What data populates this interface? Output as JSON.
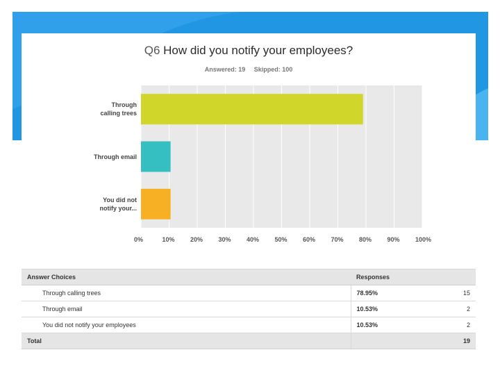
{
  "question": {
    "number": "Q6",
    "text": "How did you notify your employees?"
  },
  "stats": {
    "answered_label": "Answered: 19",
    "skipped_label": "Skipped: 100"
  },
  "chart_data": {
    "type": "bar",
    "orientation": "horizontal",
    "title": "Q6 How did you notify your employees?",
    "categories": [
      "Through calling trees",
      "Through email",
      "You did not notify your..."
    ],
    "category_lines": [
      [
        "Through",
        "calling trees"
      ],
      [
        "Through email"
      ],
      [
        "You did not",
        "notify your..."
      ]
    ],
    "values": [
      78.95,
      10.53,
      10.53
    ],
    "value_unit": "%",
    "colors": [
      "#d1d62a",
      "#36bfc1",
      "#f7b023"
    ],
    "xlim": [
      0,
      100
    ],
    "ticks": [
      "0%",
      "10%",
      "20%",
      "30%",
      "40%",
      "50%",
      "60%",
      "70%",
      "80%",
      "90%",
      "100%"
    ],
    "grid": true,
    "legend": "none"
  },
  "table": {
    "headers": {
      "choices": "Answer Choices",
      "responses": "Responses"
    },
    "rows": [
      {
        "choice": "Through calling trees",
        "percent": "78.95%",
        "count": "15"
      },
      {
        "choice": "Through email",
        "percent": "10.53%",
        "count": "2"
      },
      {
        "choice": "You did not notify your employees",
        "percent": "10.53%",
        "count": "2"
      }
    ],
    "total": {
      "label": "Total",
      "count": "19"
    }
  }
}
